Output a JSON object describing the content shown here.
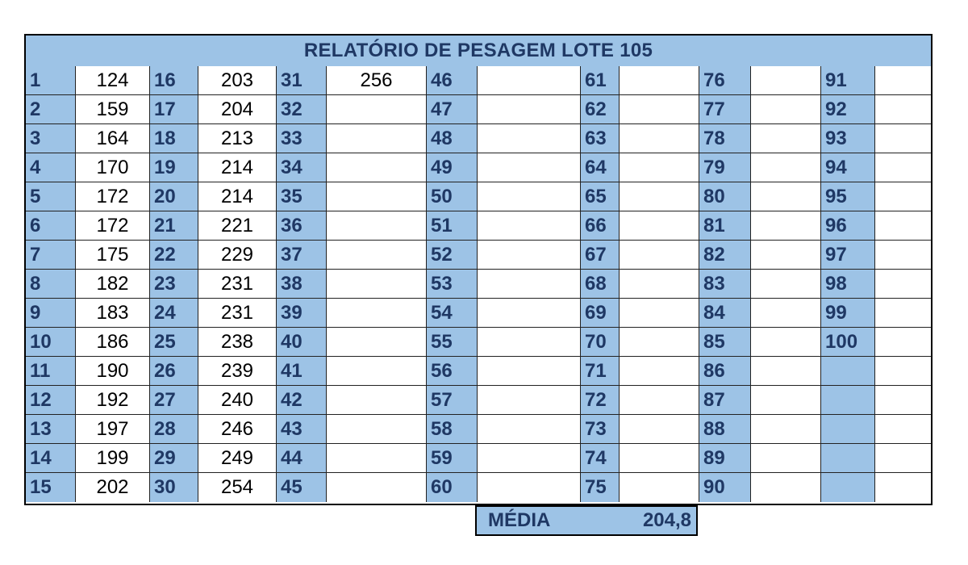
{
  "title": "RELATÓRIO DE PESAGEM LOTE 105",
  "columns": [
    {
      "start": 1,
      "weights": [
        "124",
        "159",
        "164",
        "170",
        "172",
        "172",
        "175",
        "182",
        "183",
        "186",
        "190",
        "192",
        "197",
        "199",
        "202"
      ]
    },
    {
      "start": 16,
      "weights": [
        "203",
        "204",
        "213",
        "214",
        "214",
        "221",
        "229",
        "231",
        "231",
        "238",
        "239",
        "240",
        "246",
        "249",
        "254"
      ]
    },
    {
      "start": 31,
      "weights": [
        "256",
        "",
        "",
        "",
        "",
        "",
        "",
        "",
        "",
        "",
        "",
        "",
        "",
        "",
        ""
      ]
    },
    {
      "start": 46,
      "weights": [
        "",
        "",
        "",
        "",
        "",
        "",
        "",
        "",
        "",
        "",
        "",
        "",
        "",
        "",
        ""
      ]
    },
    {
      "start": 61,
      "weights": [
        "",
        "",
        "",
        "",
        "",
        "",
        "",
        "",
        "",
        "",
        "",
        "",
        "",
        "",
        ""
      ]
    },
    {
      "start": 76,
      "weights": [
        "",
        "",
        "",
        "",
        "",
        "",
        "",
        "",
        "",
        "",
        "",
        "",
        "",
        "",
        ""
      ]
    },
    {
      "start": 91,
      "weights": [
        "",
        "",
        "",
        "",
        "",
        "",
        "",
        "",
        "",
        "",
        "",
        "",
        "",
        "",
        ""
      ]
    }
  ],
  "summary": {
    "label": "MÉDIA",
    "value": "204,8"
  }
}
